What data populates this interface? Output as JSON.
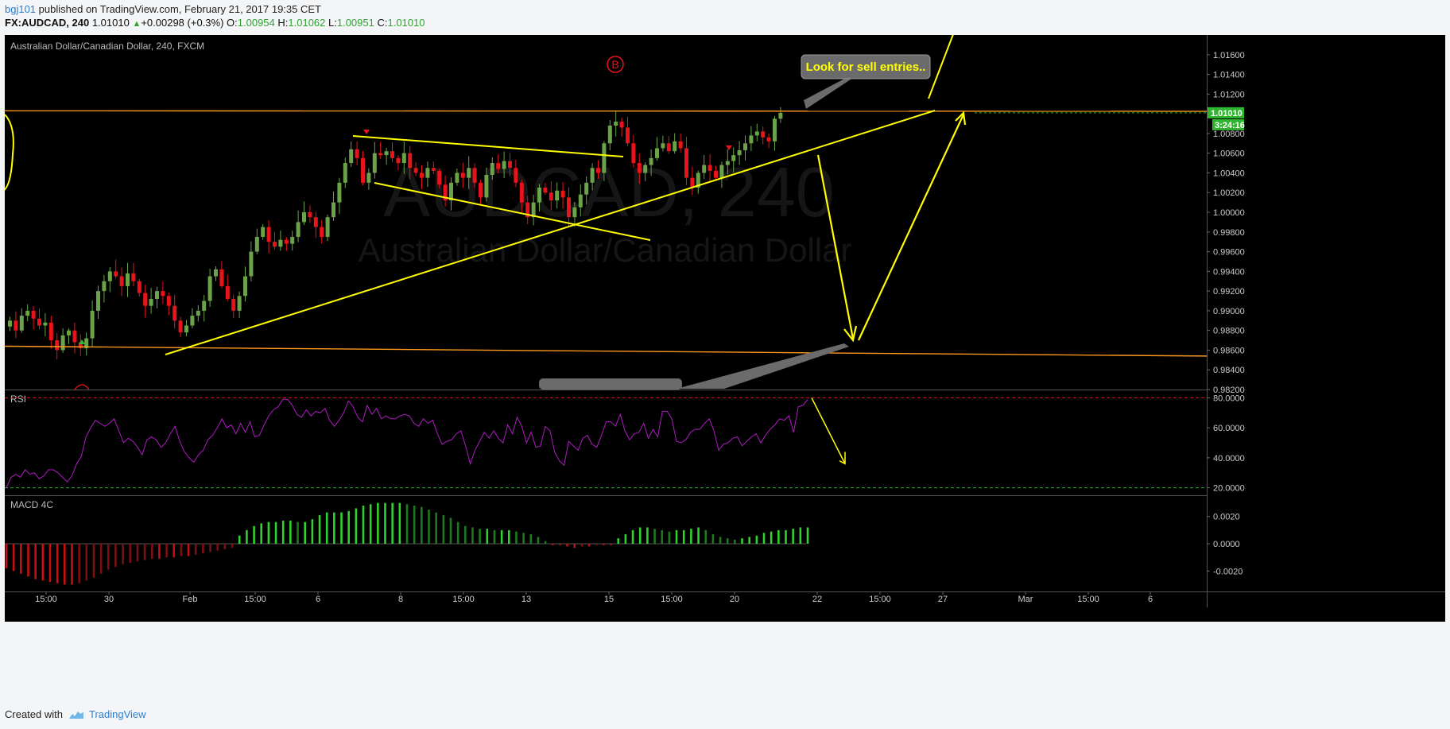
{
  "header": {
    "author": "bgj101",
    "published_text": "published on TradingView.com, February 21, 2017 19:35 CET",
    "symbol_line": "FX:AUDCAD, 240",
    "last": "1.01010",
    "change_arrow": "▲",
    "change": "+0.00298 (+0.3%)",
    "o_label": "O:",
    "o": "1.00954",
    "h_label": "H:",
    "h": "1.01062",
    "l_label": "L:",
    "l": "1.00951",
    "c_label": "C:",
    "c": "1.01010"
  },
  "footer": {
    "created_with": "Created with",
    "brand": "TradingView"
  },
  "colors": {
    "background": "#000000",
    "up": "#6ba34a",
    "down": "#e8131b",
    "trendline": "#ffff00",
    "horizontal": "#ff9a1c",
    "rsi": "#b01bc4",
    "macd_up": "#2fb52f",
    "macd_down": "#c41010",
    "price_tag": "#2fb52f"
  },
  "chart_data": [
    {
      "type": "candlestick",
      "title": "Australian Dollar/Canadian Dollar, 240, FXCM",
      "watermark_symbol": "AUDCAD, 240",
      "watermark_name": "Australian Dollar/Canadian Dollar",
      "ylim": [
        0.982,
        1.018
      ],
      "y_ticks": [
        "1.01600",
        "1.01400",
        "1.01200",
        "1.00800",
        "1.00600",
        "1.00400",
        "1.00200",
        "1.00000",
        "0.99800",
        "0.99600",
        "0.99400",
        "0.99200",
        "0.99000",
        "0.98800",
        "0.98600",
        "0.98400",
        "0.98200"
      ],
      "last_price": "1.01010",
      "countdown": "3:24:16",
      "annotation_text": "Look for sell entries..",
      "marker_label": "B",
      "x_ticks": [
        "15:00",
        "30",
        "Feb",
        "15:00",
        "6",
        "8",
        "15:00",
        "13",
        "15",
        "15:00",
        "20",
        "22",
        "15:00",
        "27",
        "Mar",
        "15:00",
        "6"
      ],
      "horizontal_levels": [
        1.0102,
        0.9858
      ],
      "closes": [
        0.989,
        0.988,
        0.9895,
        0.99,
        0.9892,
        0.9885,
        0.9888,
        0.987,
        0.986,
        0.9875,
        0.988,
        0.9868,
        0.9862,
        0.9872,
        0.99,
        0.992,
        0.993,
        0.994,
        0.9935,
        0.9925,
        0.9938,
        0.993,
        0.9918,
        0.9905,
        0.9912,
        0.992,
        0.9915,
        0.9905,
        0.989,
        0.9878,
        0.9885,
        0.9895,
        0.99,
        0.991,
        0.9935,
        0.9942,
        0.9925,
        0.9912,
        0.99,
        0.9915,
        0.9935,
        0.996,
        0.9975,
        0.9985,
        0.997,
        0.9965,
        0.9972,
        0.9968,
        0.9975,
        0.999,
        1.0,
        0.9995,
        0.9985,
        0.9975,
        0.9995,
        1.001,
        1.003,
        1.005,
        1.0064,
        1.0055,
        1.003,
        1.004,
        1.006,
        1.0058,
        1.0062,
        1.0055,
        1.005,
        1.006,
        1.0045,
        1.004,
        1.0035,
        1.0045,
        1.0042,
        1.0028,
        1.0012,
        1.003,
        1.004,
        1.0035,
        1.0045,
        1.003,
        1.0015,
        1.0038,
        1.005,
        1.0044,
        1.0052,
        1.0045,
        1.003,
        1.001,
        0.9995,
        1.001,
        1.0025,
        1.002,
        1.0012,
        1.0022,
        1.0015,
        0.9995,
        1.0005,
        1.0018,
        1.003,
        1.0045,
        1.004,
        1.007,
        1.0088,
        1.0092,
        1.0086,
        1.007,
        1.005,
        1.004,
        1.0048,
        1.0055,
        1.0065,
        1.007,
        1.0062,
        1.0072,
        1.0065,
        1.0035,
        1.0025,
        1.004,
        1.0048,
        1.0042,
        1.0035,
        1.0048,
        1.0052,
        1.0058,
        1.0063,
        1.007,
        1.0078,
        1.0082,
        1.0076,
        1.0072,
        1.0095,
        1.0101
      ]
    },
    {
      "type": "line",
      "title": "RSI",
      "ylim": [
        15,
        85
      ],
      "y_ticks": [
        "80.0000",
        "60.0000",
        "40.0000",
        "20.0000"
      ],
      "levels": [
        80,
        20
      ],
      "values": [
        20,
        27,
        29,
        27,
        32,
        29,
        30,
        26,
        28,
        32,
        32,
        30,
        27,
        24,
        28,
        36,
        41,
        54,
        60,
        65,
        63,
        61,
        63,
        66,
        58,
        50,
        53,
        51,
        47,
        42,
        52,
        54,
        52,
        47,
        50,
        56,
        61,
        51,
        44,
        40,
        37,
        42,
        45,
        52,
        55,
        60,
        66,
        60,
        62,
        56,
        63,
        57,
        64,
        54,
        55,
        62,
        68,
        72,
        74,
        79,
        79,
        75,
        69,
        67,
        72,
        68,
        71,
        70,
        73,
        65,
        61,
        65,
        70,
        78,
        74,
        67,
        64,
        75,
        69,
        73,
        66,
        68,
        66,
        66,
        68,
        69,
        68,
        63,
        61,
        66,
        63,
        65,
        56,
        49,
        51,
        52,
        56,
        58,
        48,
        36,
        45,
        51,
        57,
        53,
        58,
        53,
        50,
        62,
        56,
        67,
        61,
        50,
        57,
        47,
        48,
        61,
        58,
        44,
        38,
        35,
        51,
        48,
        45,
        53,
        55,
        49,
        47,
        55,
        64,
        64,
        61,
        69,
        58,
        52,
        56,
        57,
        63,
        53,
        59,
        54,
        71,
        71,
        66,
        51,
        50,
        52,
        57,
        59,
        59,
        63,
        66,
        58,
        45,
        49,
        50,
        53,
        54,
        48,
        51,
        54,
        56,
        50,
        55,
        59,
        62,
        66,
        65,
        68,
        57,
        74,
        75,
        79
      ]
    },
    {
      "type": "bar",
      "title": "MACD 4C",
      "ylim": [
        -0.0035,
        0.0035
      ],
      "y_ticks": [
        "0.0020",
        "0.0000",
        "-0.0020"
      ],
      "values": [
        -0.0018,
        -0.002,
        -0.0022,
        -0.0024,
        -0.0026,
        -0.0027,
        -0.0028,
        -0.0029,
        -0.003,
        -0.003,
        -0.0029,
        -0.0027,
        -0.0025,
        -0.0022,
        -0.0019,
        -0.0017,
        -0.0015,
        -0.0014,
        -0.0013,
        -0.0012,
        -0.0011,
        -0.0011,
        -0.001,
        -0.001,
        -0.0009,
        -0.0009,
        -0.0008,
        -0.0007,
        -0.0006,
        -0.0005,
        -0.0004,
        -0.0003,
        0.0006,
        0.001,
        0.0013,
        0.0015,
        0.0016,
        0.0016,
        0.0017,
        0.0017,
        0.0016,
        0.0016,
        0.0018,
        0.0021,
        0.0023,
        0.0023,
        0.0023,
        0.0024,
        0.0026,
        0.0028,
        0.0029,
        0.003,
        0.003,
        0.003,
        0.003,
        0.0029,
        0.0028,
        0.0027,
        0.0025,
        0.0023,
        0.0021,
        0.0019,
        0.0016,
        0.0013,
        0.0012,
        0.0011,
        0.0011,
        0.001,
        0.001,
        0.001,
        0.0009,
        0.0008,
        0.0007,
        0.0005,
        0.0002,
        -0.0001,
        -0.0001,
        -0.0002,
        -0.0003,
        -0.0002,
        -0.0002,
        -0.0001,
        -0.0001,
        -0.0001,
        0.0004,
        0.0007,
        0.001,
        0.0012,
        0.0012,
        0.0011,
        0.001,
        0.0009,
        0.001,
        0.001,
        0.0011,
        0.0012,
        0.001,
        0.0007,
        0.0005,
        0.0004,
        0.0003,
        0.0004,
        0.0005,
        0.0006,
        0.0008,
        0.0009,
        0.001,
        0.001,
        0.0011,
        0.0012,
        0.0012
      ]
    }
  ]
}
